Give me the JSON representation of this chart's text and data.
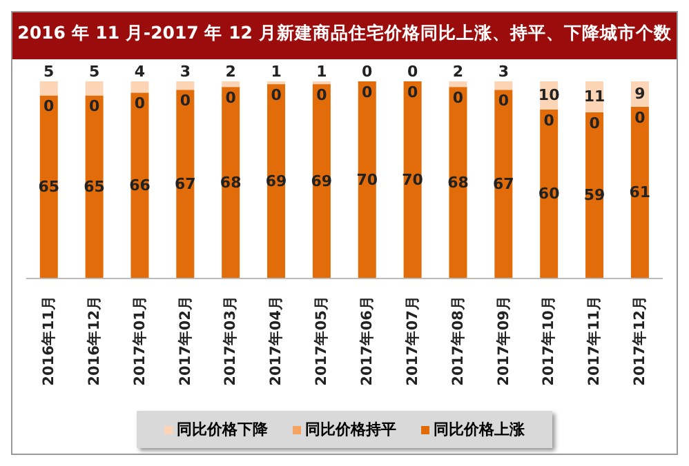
{
  "chart_data": {
    "type": "bar",
    "title": "2016 年 11 月-2017 年 12 月新建商品住宅价格同比上涨、持平、下降城市个数",
    "categories": [
      "2016年11月",
      "2016年12月",
      "2017年01月",
      "2017年02月",
      "2017年03月",
      "2017年04月",
      "2017年05月",
      "2017年06月",
      "2017年07月",
      "2017年08月",
      "2017年09月",
      "2017年10月",
      "2017年11月",
      "2017年12月"
    ],
    "stacked": true,
    "data_labels": true,
    "legend": "bottom",
    "grid": false,
    "tick_labels": "x",
    "series": [
      {
        "name": "同比价格上涨",
        "color": "#e36c0a",
        "values": [
          65,
          65,
          66,
          67,
          68,
          69,
          69,
          70,
          70,
          68,
          67,
          60,
          59,
          61
        ]
      },
      {
        "name": "同比价格持平",
        "color": "#f4a460",
        "values": [
          0,
          0,
          0,
          0,
          0,
          0,
          0,
          0,
          0,
          0,
          0,
          0,
          0,
          0
        ]
      },
      {
        "name": "同比价格下降",
        "color": "#fbd5b5",
        "values": [
          5,
          5,
          4,
          3,
          2,
          1,
          1,
          0,
          0,
          2,
          3,
          10,
          11,
          9
        ]
      }
    ]
  }
}
